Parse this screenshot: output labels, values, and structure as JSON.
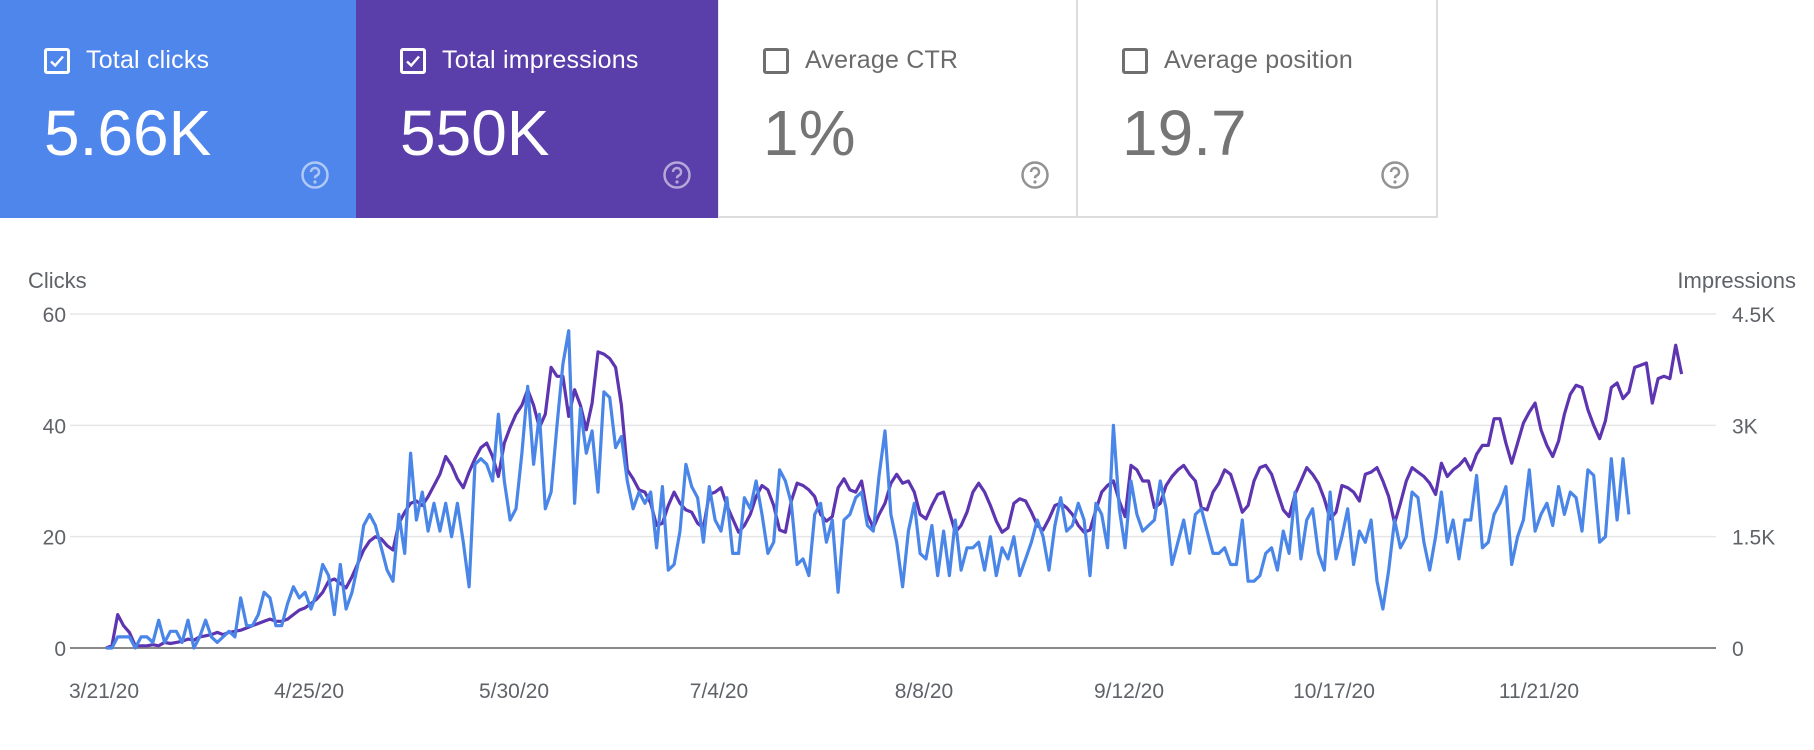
{
  "metrics": [
    {
      "label": "Total clicks",
      "value": "5.66K",
      "checked": true,
      "color": "#4f86ec"
    },
    {
      "label": "Total impressions",
      "value": "550K",
      "checked": true,
      "color": "#5a3ea9"
    },
    {
      "label": "Average CTR",
      "value": "1%",
      "checked": false,
      "color": "#ffffff"
    },
    {
      "label": "Average position",
      "value": "19.7",
      "checked": false,
      "color": "#ffffff"
    }
  ],
  "chart_data": {
    "type": "line",
    "title": "",
    "ylabel_left": "Clicks",
    "ylabel_right": "Impressions",
    "x_tick_labels": [
      "3/21/20",
      "4/25/20",
      "5/30/20",
      "7/4/20",
      "8/8/20",
      "9/12/20",
      "10/17/20",
      "11/21/20"
    ],
    "y_left_ticks": [
      "0",
      "20",
      "40",
      "60"
    ],
    "y_right_ticks": [
      "0",
      "1.5K",
      "3K",
      "4.5K"
    ],
    "ylim_left": [
      0,
      60
    ],
    "ylim_right": [
      0,
      4500
    ],
    "num_days": 275,
    "series": [
      {
        "name": "Clicks",
        "axis": "left",
        "color": "#4a86e8",
        "values": [
          0,
          0,
          2,
          2,
          2,
          0,
          2,
          2,
          1,
          5,
          1,
          3,
          3,
          1,
          5,
          0,
          2,
          5,
          2,
          1,
          2,
          3,
          2,
          9,
          4,
          4,
          6,
          10,
          9,
          4,
          4,
          8,
          11,
          9,
          10,
          7,
          10,
          15,
          13,
          6,
          15,
          7,
          10,
          15,
          22,
          24,
          22,
          18,
          14,
          12,
          24,
          17,
          35,
          23,
          28,
          21,
          26,
          21,
          26,
          20,
          26,
          19,
          11,
          33,
          34,
          33,
          30,
          42,
          30,
          23,
          25,
          35,
          47,
          33,
          42,
          25,
          28,
          40,
          51,
          57,
          26,
          43,
          35,
          39,
          28,
          46,
          45,
          36,
          38,
          30,
          25,
          28,
          26,
          28,
          18,
          29,
          14,
          15,
          21,
          33,
          29,
          27,
          19,
          29,
          23,
          21,
          27,
          17,
          17,
          27,
          25,
          30,
          24,
          17,
          19,
          32,
          30,
          26,
          15,
          16,
          13,
          24,
          26,
          19,
          23,
          10,
          23,
          24,
          27,
          28,
          22,
          21,
          31,
          39,
          24,
          19,
          11,
          21,
          26,
          17,
          16,
          22,
          13,
          21,
          13,
          23,
          14,
          18,
          18,
          19,
          14,
          20,
          13,
          18,
          16,
          20,
          13,
          16,
          19,
          23,
          20,
          14,
          22,
          27,
          21,
          22,
          26,
          23,
          13,
          26,
          24,
          18,
          40,
          25,
          18,
          30,
          24,
          21,
          22,
          23,
          30,
          25,
          15,
          19,
          23,
          17,
          24,
          25,
          21,
          17,
          17,
          18,
          15,
          15,
          23,
          12,
          12,
          13,
          17,
          18,
          14,
          21,
          17,
          28,
          16,
          23,
          25,
          17,
          14,
          28,
          16,
          20,
          25,
          15,
          21,
          19,
          23,
          12,
          7,
          14,
          23,
          18,
          20,
          28,
          27,
          19,
          14,
          20,
          28,
          19,
          23,
          16,
          23,
          23,
          31,
          18,
          19,
          24,
          26,
          29,
          15,
          20,
          23,
          32,
          21,
          24,
          26,
          22,
          29,
          24,
          28,
          27,
          21,
          32,
          31,
          19,
          20,
          34,
          23,
          34,
          24
        ],
        "note": "values in clicks (left axis)"
      },
      {
        "name": "Impressions",
        "axis": "right",
        "color": "#5e35b1",
        "values": [
          0,
          30,
          450,
          300,
          210,
          30,
          30,
          30,
          45,
          30,
          75,
          60,
          75,
          90,
          120,
          105,
          150,
          165,
          180,
          210,
          180,
          210,
          225,
          240,
          270,
          300,
          330,
          360,
          390,
          360,
          360,
          390,
          450,
          510,
          540,
          600,
          660,
          750,
          900,
          930,
          870,
          810,
          960,
          1140,
          1320,
          1440,
          1500,
          1470,
          1380,
          1320,
          1680,
          1830,
          1950,
          1980,
          1920,
          2040,
          2190,
          2340,
          2580,
          2460,
          2280,
          2160,
          2370,
          2550,
          2700,
          2760,
          2580,
          2310,
          2760,
          2970,
          3150,
          3270,
          3480,
          3270,
          2970,
          3150,
          3780,
          3660,
          3660,
          3120,
          3480,
          3270,
          2940,
          3300,
          3990,
          3960,
          3900,
          3780,
          3270,
          2400,
          2280,
          2130,
          2100,
          1950,
          1650,
          1680,
          1920,
          2100,
          1950,
          1860,
          1830,
          1680,
          1620,
          2070,
          2100,
          2160,
          1920,
          1740,
          1560,
          1650,
          1800,
          2040,
          2190,
          2130,
          1920,
          1590,
          1560,
          1980,
          2220,
          2190,
          2130,
          2040,
          1800,
          1710,
          1770,
          2160,
          2280,
          2130,
          2100,
          2250,
          1800,
          1620,
          1800,
          1950,
          2220,
          2340,
          2220,
          2250,
          2100,
          1800,
          1740,
          1920,
          2070,
          2100,
          1830,
          1560,
          1650,
          1830,
          2100,
          2220,
          2100,
          1920,
          1710,
          1560,
          1620,
          1950,
          2010,
          1980,
          1830,
          1650,
          1590,
          1740,
          1920,
          1950,
          1890,
          1800,
          1650,
          1560,
          1590,
          1860,
          2100,
          2190,
          2250,
          1980,
          1770,
          2460,
          2400,
          2250,
          2250,
          1890,
          1950,
          2190,
          2310,
          2400,
          2460,
          2340,
          2250,
          1890,
          1860,
          2100,
          2220,
          2400,
          2340,
          2100,
          1830,
          1920,
          2250,
          2430,
          2460,
          2340,
          2100,
          1860,
          1770,
          2070,
          2250,
          2430,
          2340,
          2220,
          2010,
          1740,
          1830,
          2190,
          2160,
          2100,
          1980,
          2340,
          2370,
          2430,
          2250,
          2040,
          1680,
          1950,
          2250,
          2430,
          2370,
          2310,
          2220,
          2070,
          2490,
          2310,
          2400,
          2460,
          2550,
          2400,
          2610,
          2730,
          2730,
          3090,
          3090,
          2760,
          2490,
          2760,
          3030,
          3180,
          3300,
          2940,
          2730,
          2580,
          2790,
          3150,
          3420,
          3540,
          3510,
          3210,
          3000,
          2820,
          3060,
          3510,
          3570,
          3360,
          3450,
          3780,
          3810,
          3840,
          3300,
          3630,
          3660,
          3630,
          4080,
          3690
        ]
      }
    ]
  }
}
